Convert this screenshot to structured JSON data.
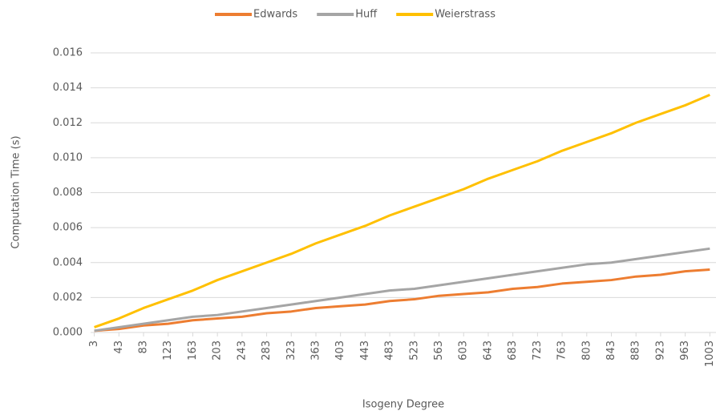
{
  "chart_data": {
    "type": "line",
    "x": [
      3,
      43,
      83,
      123,
      163,
      203,
      243,
      283,
      323,
      363,
      403,
      443,
      483,
      523,
      563,
      603,
      643,
      683,
      723,
      763,
      803,
      843,
      883,
      923,
      963,
      1003
    ],
    "series": [
      {
        "name": "Edwards",
        "color": "#ed7d31",
        "values": [
          0.0001,
          0.0002,
          0.0004,
          0.0005,
          0.0007,
          0.0008,
          0.0009,
          0.0011,
          0.0012,
          0.0014,
          0.0015,
          0.0016,
          0.0018,
          0.0019,
          0.0021,
          0.0022,
          0.0023,
          0.0025,
          0.0026,
          0.0028,
          0.0029,
          0.003,
          0.0032,
          0.0033,
          0.0035,
          0.0036
        ]
      },
      {
        "name": "Huff",
        "color": "#a5a5a5",
        "values": [
          0.0001,
          0.0003,
          0.0005,
          0.0007,
          0.0009,
          0.001,
          0.0012,
          0.0014,
          0.0016,
          0.0018,
          0.002,
          0.0022,
          0.0024,
          0.0025,
          0.0027,
          0.0029,
          0.0031,
          0.0033,
          0.0035,
          0.0037,
          0.0039,
          0.004,
          0.0042,
          0.0044,
          0.0046,
          0.0048
        ]
      },
      {
        "name": "Weierstrass",
        "color": "#ffc000",
        "values": [
          0.0003,
          0.0008,
          0.0014,
          0.0019,
          0.0024,
          0.003,
          0.0035,
          0.004,
          0.0045,
          0.0051,
          0.0056,
          0.0061,
          0.0067,
          0.0072,
          0.0077,
          0.0082,
          0.0088,
          0.0093,
          0.0098,
          0.0104,
          0.0109,
          0.0114,
          0.012,
          0.0125,
          0.013,
          0.0136
        ]
      }
    ],
    "x_label": "Isogeny Degree",
    "y_label": "Computation Time (s)",
    "xlim": [
      -3,
      1013
    ],
    "xticks": [
      3,
      43,
      83,
      123,
      163,
      203,
      243,
      283,
      323,
      363,
      403,
      443,
      483,
      523,
      563,
      603,
      643,
      683,
      723,
      763,
      803,
      843,
      883,
      923,
      963,
      1003
    ],
    "ylim": [
      0,
      0.016
    ],
    "yticks": [
      {
        "value": 0,
        "label": "0.000"
      },
      {
        "value": 0.002,
        "label": "0.002"
      },
      {
        "value": 0.004,
        "label": "0.004"
      },
      {
        "value": 0.006,
        "label": "0.006"
      },
      {
        "value": 0.008,
        "label": "0.008"
      },
      {
        "value": 0.01,
        "label": "0.010"
      },
      {
        "value": 0.012,
        "label": "0.012"
      },
      {
        "value": 0.014,
        "label": "0.014"
      },
      {
        "value": 0.016,
        "label": "0.016"
      }
    ],
    "grid": true,
    "legend": "top"
  }
}
